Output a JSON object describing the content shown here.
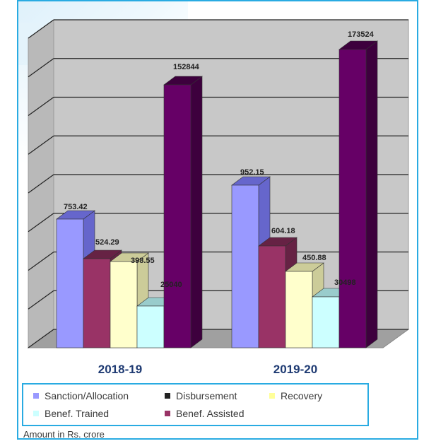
{
  "chart_data": {
    "type": "bar",
    "categories": [
      "2018-19",
      "2019-20"
    ],
    "series": [
      {
        "name": "Sanction/Allocation",
        "values": [
          753.42,
          952.15
        ],
        "color": "#9999ff",
        "side_color": "#6666cc"
      },
      {
        "name": "Benef. Assisted",
        "values": [
          524.29,
          604.18
        ],
        "color": "#993366",
        "side_color": "#662244"
      },
      {
        "name": "Recovery",
        "values": [
          398.55,
          450.88
        ],
        "color": "#ffffcc",
        "side_color": "#cccc99"
      },
      {
        "name": "Benef. Trained",
        "values": [
          25040,
          30498
        ],
        "color": "#ccffff",
        "side_color": "#99cccc"
      },
      {
        "name": "Disbursement",
        "values": [
          152844,
          173524
        ],
        "color": "#660066",
        "side_color": "#3d003d"
      }
    ],
    "value_labels": [
      [
        "753.42",
        "524.29",
        "398.55",
        "25040",
        "152844"
      ],
      [
        "952.15",
        "604.18",
        "450.88",
        "30498",
        "173524"
      ]
    ],
    "note": "Bars drawn with visual heights; values shown as labels (mixed units)",
    "grid": true,
    "style": "3d-bar"
  },
  "legend": {
    "items": [
      {
        "label": "Sanction/Allocation",
        "color": "#9999ff"
      },
      {
        "label": "Disbursement",
        "color": "#222222"
      },
      {
        "label": "Recovery",
        "color": "#ffff99"
      },
      {
        "label": "Benef. Trained",
        "color": "#ccffff"
      },
      {
        "label": "Benef. Assisted",
        "color": "#993366"
      }
    ]
  },
  "footnote": "Amount in Rs. crore",
  "colors": {
    "frame_border": "#29abe2",
    "plot_wall": "#c8c8c8",
    "plot_floor": "#a0a0a0",
    "category_label": "#1f3b73"
  }
}
